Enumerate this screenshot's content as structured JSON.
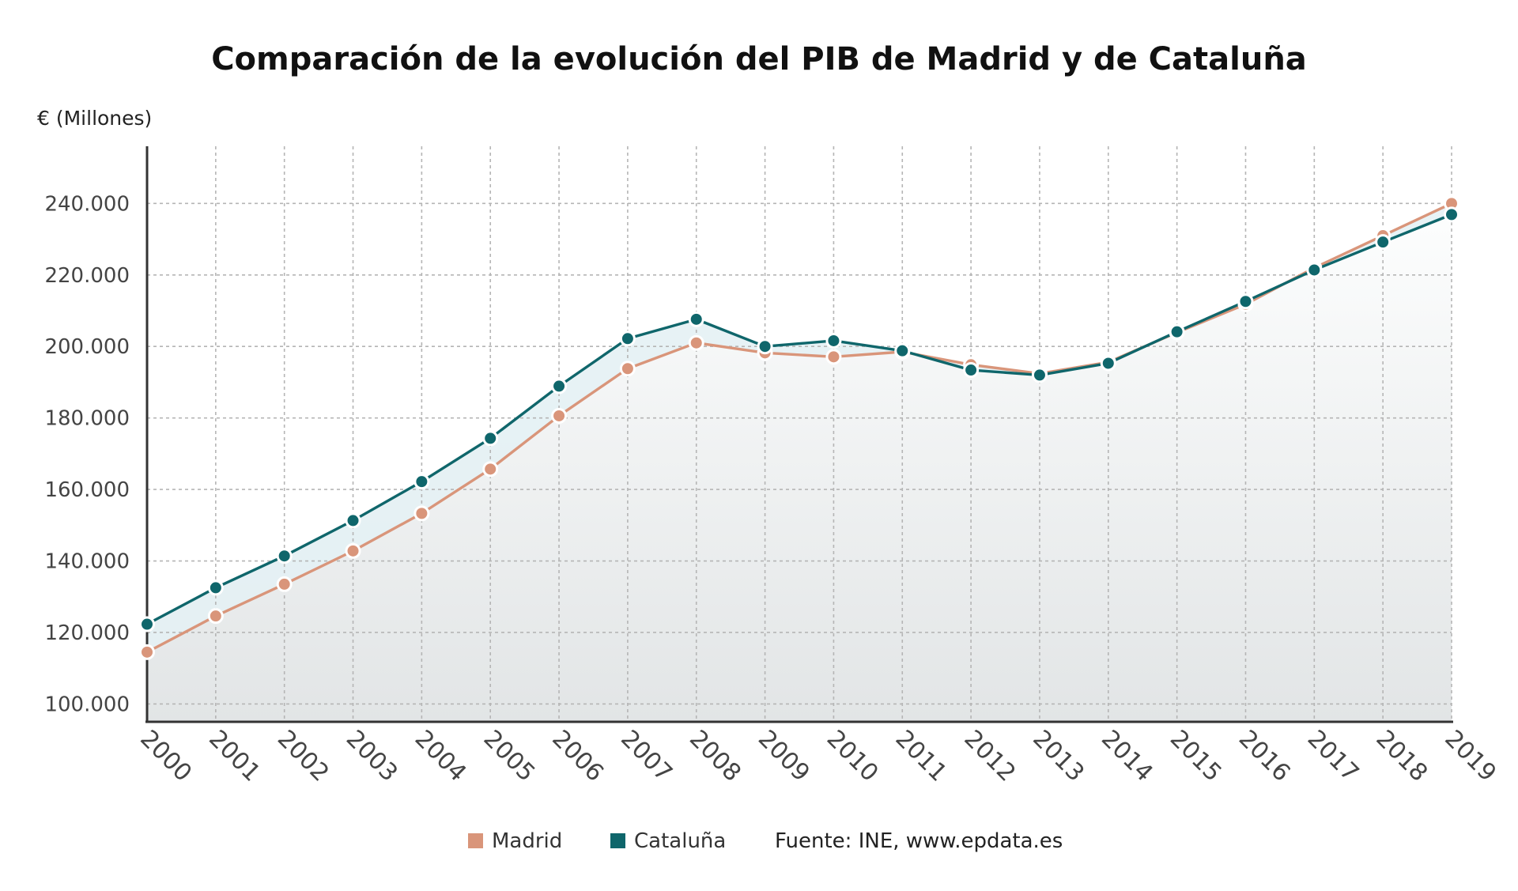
{
  "chart_data": {
    "type": "area",
    "title": "Comparación de la evolución del PIB de Madrid y de Cataluña",
    "ylabel": "€ (Millones)",
    "xlabel": "",
    "categories": [
      "2000",
      "2001",
      "2002",
      "2003",
      "2004",
      "2005",
      "2006",
      "2007",
      "2008",
      "2009",
      "2010",
      "2011",
      "2012",
      "2013",
      "2014",
      "2015",
      "2016",
      "2017",
      "2018",
      "2019"
    ],
    "ylim": [
      95000,
      256000
    ],
    "yticks": [
      {
        "value": 100000,
        "label": "100.000"
      },
      {
        "value": 120000,
        "label": "120.000"
      },
      {
        "value": 140000,
        "label": "140.000"
      },
      {
        "value": 160000,
        "label": "160.000"
      },
      {
        "value": 180000,
        "label": "180.000"
      },
      {
        "value": 200000,
        "label": "200.000"
      },
      {
        "value": 220000,
        "label": "220.000"
      },
      {
        "value": 240000,
        "label": "240.000"
      }
    ],
    "grid": true,
    "legend_position": "bottom",
    "series": [
      {
        "name": "Madrid",
        "color": "#d9957a",
        "values": [
          114500,
          124600,
          133500,
          142800,
          153300,
          165700,
          180600,
          193800,
          201000,
          198200,
          197100,
          198500,
          194900,
          192400,
          195600,
          203900,
          211800,
          222000,
          231000,
          240000
        ]
      },
      {
        "name": "Cataluña",
        "color": "#0f666b",
        "values": [
          122300,
          132500,
          141400,
          151300,
          162200,
          174300,
          188900,
          202200,
          207600,
          200000,
          201600,
          198800,
          193400,
          192000,
          195300,
          204100,
          212600,
          221400,
          229200,
          236900
        ]
      }
    ]
  },
  "footer": {
    "source_prefix": "Fuente: INE, ",
    "source_site": "www.epdata.es"
  },
  "colors": {
    "area_top": "#fdfefe",
    "area_bottom": "#e2e5e6",
    "band_fill": "#e4f1f4",
    "axis": "#333333"
  }
}
